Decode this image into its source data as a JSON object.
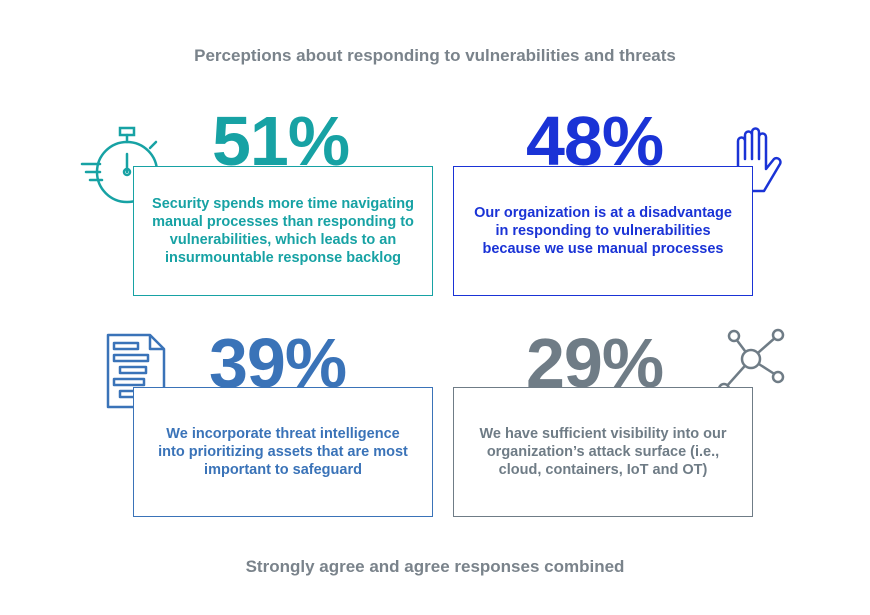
{
  "title": "Perceptions about responding to vulnerabilities and threats",
  "footer": "Strongly agree and agree responses combined",
  "colors": {
    "teal": "#17a2a4",
    "blue": "#1a33d6",
    "mid_blue": "#3a73b8",
    "slate": "#6f7c86"
  },
  "chart_data": {
    "type": "table",
    "items": [
      {
        "value_label": "51%",
        "value": 51,
        "text": "Security spends more time navigating manual processes than responding to vulnerabilities, which leads to an insurmountable response backlog",
        "icon": "stopwatch-icon"
      },
      {
        "value_label": "48%",
        "value": 48,
        "text": "Our organization is at a disadvantage in responding to vulnerabilities because we use manual processes",
        "icon": "hand-icon"
      },
      {
        "value_label": "39%",
        "value": 39,
        "text": "We incorporate threat intelligence into prioritizing assets that are most important to safeguard",
        "icon": "document-icon"
      },
      {
        "value_label": "29%",
        "value": 29,
        "text": "We have sufficient visibility into our organization’s attack surface (i.e., cloud, containers, IoT and OT)",
        "icon": "network-icon"
      }
    ]
  }
}
